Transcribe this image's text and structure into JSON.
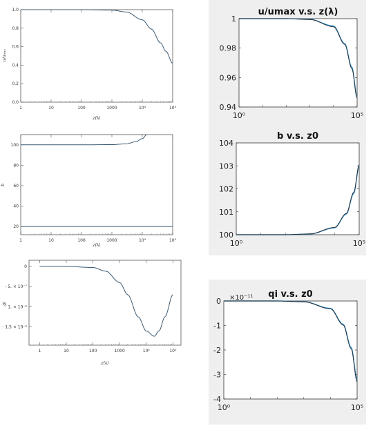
{
  "chart_data": [
    {
      "type": "line",
      "xscale": "log",
      "xlim": [
        1,
        100000
      ],
      "ylim": [
        0,
        1.0
      ],
      "xlabel": "z(λ)",
      "ylabel": "u/uₘₐₓ",
      "xticks": [
        "1",
        "10",
        "100",
        "1000",
        "10⁴",
        "10⁵"
      ],
      "yticks": [
        "0.0",
        "0.2",
        "0.4",
        "0.6",
        "0.8",
        "1.0"
      ],
      "series": [
        {
          "x": [
            1,
            10,
            100,
            1000,
            3000,
            10000,
            20000,
            40000,
            60000,
            100000
          ],
          "y": [
            1.0,
            1.0,
            1.0,
            0.995,
            0.975,
            0.89,
            0.79,
            0.64,
            0.55,
            0.42
          ]
        }
      ]
    },
    {
      "type": "line",
      "xscale": "log",
      "xlim": [
        1,
        100000
      ],
      "ylim": [
        12,
        110
      ],
      "xlabel": "z(λ)",
      "ylabel": "b",
      "xticks": [
        "1",
        "10",
        "100",
        "1000",
        "10⁴",
        "10⁵"
      ],
      "yticks": [
        "20",
        "40",
        "60",
        "80",
        "100"
      ],
      "series": [
        {
          "x": [
            1,
            100,
            1000,
            3000,
            6000,
            10000,
            14000
          ],
          "y": [
            100,
            100,
            100.2,
            101,
            103,
            106,
            110
          ]
        },
        {
          "x": [
            1,
            100000
          ],
          "y": [
            20,
            20
          ]
        }
      ]
    },
    {
      "type": "line",
      "xscale": "log",
      "xlim": [
        0.4,
        200000
      ],
      "ylim": [
        -1.95e-06,
        1.5e-07
      ],
      "xlabel": "z(λ)",
      "ylabel": "qi",
      "xticks": [
        "1",
        "10",
        "100",
        "1000",
        "10⁴",
        "10⁵"
      ],
      "yticks": [
        "0",
        "- 5. × 10⁻⁷",
        "- 1. × 10⁻⁶",
        "- 1.5 × 10⁻⁶"
      ],
      "series": [
        {
          "x": [
            1,
            10,
            100,
            300,
            1000,
            2000,
            5000,
            10000,
            20000,
            30000,
            50000,
            100000
          ],
          "y": [
            0,
            -2e-09,
            -3e-08,
            -1.2e-07,
            -4e-07,
            -7e-07,
            -1.25e-06,
            -1.6e-06,
            -1.73e-06,
            -1.6e-06,
            -1.25e-06,
            -7e-07
          ]
        }
      ]
    },
    {
      "type": "line",
      "xscale": "log",
      "xlim": [
        1,
        100000
      ],
      "ylim": [
        0.94,
        1.0
      ],
      "title": "u/umax v.s. z(λ)",
      "xticks": [
        "10⁰",
        "10⁵"
      ],
      "yticks": [
        "0.94",
        "0.96",
        "0.98",
        "1"
      ],
      "series": [
        {
          "x": [
            1,
            100,
            1000,
            10000,
            30000,
            60000,
            100000
          ],
          "y": [
            1.0,
            1.0,
            0.9995,
            0.995,
            0.983,
            0.967,
            0.947
          ]
        },
        {
          "x": [
            1,
            100,
            1000,
            10000,
            30000,
            60000,
            100000
          ],
          "y": [
            1.0,
            1.0,
            0.9994,
            0.9945,
            0.9825,
            0.966,
            0.946
          ]
        }
      ]
    },
    {
      "type": "line",
      "xscale": "log",
      "xlim": [
        1,
        100000
      ],
      "ylim": [
        100,
        104
      ],
      "title": "b v.s. z0",
      "xticks": [
        "10⁰",
        "10⁵"
      ],
      "yticks": [
        "100",
        "101",
        "102",
        "103",
        "104"
      ],
      "series": [
        {
          "x": [
            1,
            100,
            1000,
            10000,
            30000,
            60000,
            100000
          ],
          "y": [
            100,
            100,
            100.03,
            100.3,
            100.9,
            101.8,
            103.0
          ]
        },
        {
          "x": [
            1,
            100,
            1000,
            10000,
            30000,
            60000,
            100000
          ],
          "y": [
            100,
            100,
            100.035,
            100.32,
            100.93,
            101.85,
            103.05
          ]
        }
      ]
    },
    {
      "type": "line",
      "xscale": "log",
      "xlim": [
        1,
        100000
      ],
      "ylim": [
        -4,
        0
      ],
      "title": "qi v.s. z0",
      "yexponent": "×10⁻¹¹",
      "xticks": [
        "10⁰",
        "10⁵"
      ],
      "yticks": [
        "0",
        "-1",
        "-2",
        "-3",
        "-4"
      ],
      "series": [
        {
          "x": [
            1,
            100,
            1000,
            10000,
            30000,
            60000,
            100000
          ],
          "y": [
            0,
            0,
            -0.03,
            -0.3,
            -0.95,
            -1.9,
            -3.2
          ]
        },
        {
          "x": [
            1,
            100,
            1000,
            10000,
            30000,
            60000,
            100000
          ],
          "y": [
            0,
            0,
            -0.035,
            -0.32,
            -0.98,
            -1.95,
            -3.3
          ]
        }
      ]
    }
  ],
  "colors": {
    "left_line": "#3d5a72",
    "right_dark": "#2b2b2b",
    "right_blue": "#2d8fd0",
    "right_bg": "#efefef",
    "axis": "#444444"
  }
}
